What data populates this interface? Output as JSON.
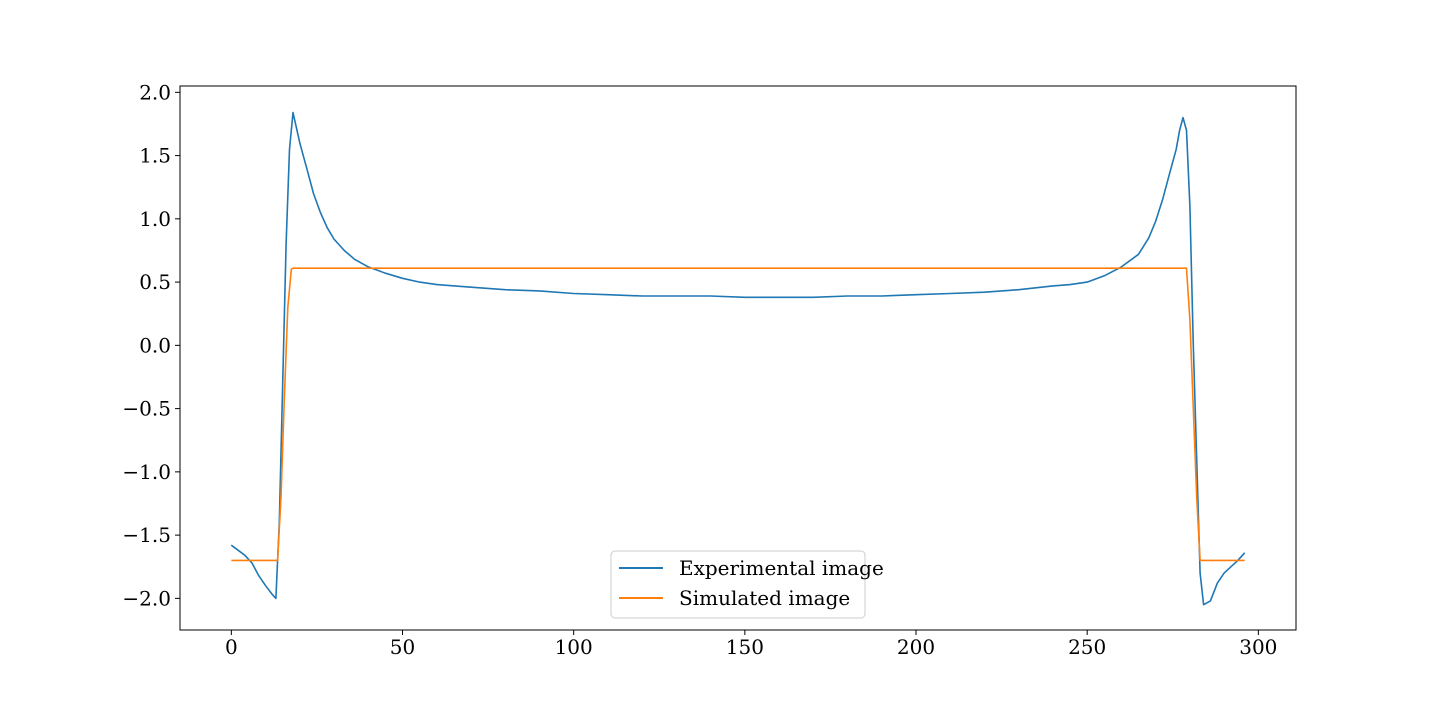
{
  "chart_data": {
    "type": "line",
    "title": "",
    "xlabel": "",
    "ylabel": "",
    "xlim": [
      -15,
      311
    ],
    "ylim": [
      -2.25,
      2.05
    ],
    "xticks": [
      0,
      50,
      100,
      150,
      200,
      250,
      300
    ],
    "yticks": [
      2.0,
      1.5,
      1.0,
      0.5,
      0.0,
      -0.5,
      -1.0,
      -1.5,
      -2.0
    ],
    "xtick_labels": [
      "0",
      "50",
      "100",
      "150",
      "200",
      "250",
      "300"
    ],
    "ytick_labels": [
      "2.0",
      "1.5",
      "1.0",
      "0.5",
      "0.0",
      "−0.5",
      "−1.0",
      "−1.5",
      "−2.0"
    ],
    "grid": false,
    "legend_placement": "lower center",
    "colors": {
      "experimental": "#1f77b4",
      "simulated": "#ff7f0e"
    },
    "series": [
      {
        "name": "Experimental image",
        "x": [
          0,
          2,
          4,
          6,
          8,
          10,
          12,
          13,
          14,
          15,
          16,
          17,
          18,
          19,
          20,
          22,
          24,
          26,
          28,
          30,
          33,
          36,
          40,
          45,
          50,
          55,
          60,
          70,
          80,
          90,
          100,
          110,
          120,
          130,
          140,
          150,
          160,
          170,
          180,
          190,
          200,
          210,
          220,
          230,
          240,
          245,
          250,
          255,
          260,
          265,
          268,
          270,
          272,
          274,
          276,
          277,
          278,
          279,
          280,
          281,
          282,
          283,
          284,
          286,
          288,
          290,
          292,
          294,
          296
        ],
        "y": [
          -1.58,
          -1.62,
          -1.66,
          -1.72,
          -1.82,
          -1.9,
          -1.97,
          -2.0,
          -1.4,
          -0.3,
          0.8,
          1.55,
          1.84,
          1.72,
          1.6,
          1.4,
          1.2,
          1.05,
          0.93,
          0.84,
          0.75,
          0.68,
          0.62,
          0.57,
          0.53,
          0.5,
          0.48,
          0.46,
          0.44,
          0.43,
          0.41,
          0.4,
          0.39,
          0.39,
          0.39,
          0.38,
          0.38,
          0.38,
          0.39,
          0.39,
          0.4,
          0.41,
          0.42,
          0.44,
          0.47,
          0.48,
          0.5,
          0.55,
          0.62,
          0.72,
          0.85,
          0.98,
          1.15,
          1.35,
          1.55,
          1.7,
          1.8,
          1.7,
          1.1,
          0.0,
          -0.9,
          -1.8,
          -2.05,
          -2.02,
          -1.88,
          -1.8,
          -1.75,
          -1.7,
          -1.64
        ]
      },
      {
        "name": "Simulated image",
        "x": [
          0,
          13.5,
          14.5,
          15.5,
          16.5,
          17.5,
          18,
          278,
          279,
          280,
          281,
          282,
          283,
          284,
          296
        ],
        "y": [
          -1.7,
          -1.7,
          -1.2,
          -0.4,
          0.3,
          0.6,
          0.61,
          0.61,
          0.61,
          0.2,
          -0.5,
          -1.2,
          -1.7,
          -1.7,
          -1.7
        ]
      }
    ]
  }
}
